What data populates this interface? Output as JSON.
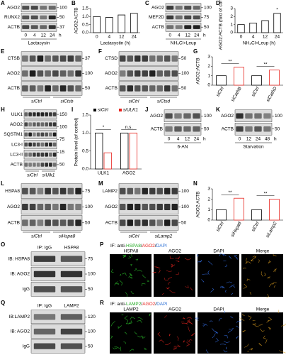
{
  "panels": [
    {
      "kind": "blot",
      "letter": "A",
      "rows": [
        "AGO2",
        "RUNX2",
        "ACTB"
      ],
      "markers": [
        "100",
        "50",
        "37"
      ],
      "lanes": [
        "0",
        "4",
        "12",
        "24"
      ],
      "unit": "h",
      "treatment": "Lactacysin"
    },
    {
      "kind": "chart",
      "letter": "B",
      "ylabel": "AGO2:ACTB",
      "xlabel": "Lactacystin (h)",
      "categories": [
        "0",
        "4",
        "12",
        "24"
      ],
      "values": [
        1.0,
        0.95,
        1.1,
        1.2
      ],
      "color": "#000000",
      "ylim": [
        0,
        1.5
      ],
      "yticks": [
        {
          "value": 0,
          "label": "0.0"
        },
        {
          "value": 0.5,
          "label": "0.5"
        },
        {
          "value": 1,
          "label": "1.0"
        },
        {
          "value": 1.5,
          "label": "1.5"
        }
      ]
    },
    {
      "kind": "blot",
      "letter": "C",
      "rows": [
        "AGO2",
        "MEF2D",
        "ACTB"
      ],
      "markers": [
        "100",
        "75",
        "50"
      ],
      "lanes": [
        "0",
        "4",
        "12",
        "24"
      ],
      "unit": "h",
      "treatment": "NH₄Cl+Leup"
    },
    {
      "kind": "chart",
      "letter": "D",
      "ylabel": "AGO2:ACTB (fold of control)",
      "xlabel": "NH₄Cl+Leup (h)",
      "categories": [
        "0",
        "4",
        "12",
        "24"
      ],
      "values": [
        1.0,
        1.2,
        1.5,
        2.4
      ],
      "color": "#000000",
      "ylim": [
        0,
        3
      ],
      "yticks": [
        0,
        1,
        2,
        3
      ],
      "annotations": [
        "*"
      ]
    },
    {
      "kind": "blot",
      "letter": "E",
      "rows": [
        "CTSB",
        "AGO2",
        "ACTB"
      ],
      "markers": [
        "37",
        "100",
        "50"
      ],
      "groups": [
        "siCtrl",
        "siCtsb"
      ]
    },
    {
      "kind": "blot",
      "letter": "F",
      "rows": [
        "CTSD",
        "AGO2",
        "ACTB"
      ],
      "markers": [
        "50",
        "100",
        "50"
      ],
      "groups": [
        "siCtrl",
        "siCtsd"
      ]
    },
    {
      "kind": "chart",
      "letter": "G",
      "ylabel": "AGO2:ACTB",
      "categories": [
        "siCtrl",
        "siCathB",
        "siCtrl",
        "siCathD"
      ],
      "values": [
        1.0,
        1.9,
        1.0,
        1.6
      ],
      "colors": [
        "#000000",
        "#e8251f",
        "#000000",
        "#e8251f"
      ],
      "ylim": [
        0,
        3
      ],
      "yticks": [
        0,
        1,
        2,
        3
      ],
      "annotations": [
        "**",
        "**"
      ]
    },
    {
      "kind": "blot",
      "letter": "H",
      "rows": [
        "ULK1",
        "AGO2",
        "SQSTM1",
        "LC3-I",
        "LC3-II",
        "ACTB"
      ],
      "markers": [
        "150",
        "100",
        "75",
        "15",
        "50"
      ],
      "groups": [
        "siCtrl",
        "siUlk1"
      ]
    },
    {
      "kind": "chart",
      "letter": "I",
      "ylabel": "Protein level (of control)",
      "categories": [
        "ULK1",
        "AGO2"
      ],
      "series": [
        {
          "name": "siCtrl",
          "color": "#000000",
          "values": [
            1.0,
            1.0
          ]
        },
        {
          "name": "siULK1",
          "color": "#e8251f",
          "values": [
            0.45,
            1.0
          ]
        }
      ],
      "ylim": [
        0,
        1.5
      ],
      "yticks": [
        {
          "value": 0,
          "label": "0.0"
        },
        {
          "value": 0.5,
          "label": "0.5"
        },
        {
          "value": 1,
          "label": "1.0"
        },
        {
          "value": 1.5,
          "label": "1.5"
        }
      ],
      "annotations": [
        "*",
        "n.s."
      ]
    },
    {
      "kind": "blot",
      "letter": "J",
      "rows": [
        "AGO2",
        "ACTB"
      ],
      "markers": [
        "100",
        "50"
      ],
      "lanes": [
        "0",
        "4",
        "12",
        "24"
      ],
      "unit": "h",
      "treatment": "6-AN"
    },
    {
      "kind": "blot",
      "letter": "K",
      "rows": [
        "AGO2",
        "ACTB"
      ],
      "markers": [
        "100",
        "50"
      ],
      "lanes": [
        "0",
        "12",
        "24",
        "48"
      ],
      "unit": "h",
      "treatment": "Starvation"
    },
    {
      "kind": "blot",
      "letter": "L",
      "rows": [
        "HSPA8",
        "AGO2",
        "ACTB"
      ],
      "markers": [
        "75",
        "100",
        "50"
      ],
      "groups": [
        "siCtrl",
        "siHspa8"
      ]
    },
    {
      "kind": "blot",
      "letter": "M",
      "rows": [
        "LAMP2",
        "AGO2",
        "ACTB"
      ],
      "markers": [
        "100",
        "100",
        "50"
      ],
      "groups": [
        "siCtrl",
        "siLamp2"
      ]
    },
    {
      "kind": "chart",
      "letter": "N",
      "ylabel": "AGO2:ACTB",
      "categories": [
        "siCtrl",
        "siHspa8",
        "siCtrl",
        "siLamp2"
      ],
      "values": [
        1.0,
        2.1,
        1.0,
        2.0
      ],
      "colors": [
        "#000000",
        "#e8251f",
        "#000000",
        "#e8251f"
      ],
      "ylim": [
        0,
        3
      ],
      "yticks": [
        0,
        1,
        2,
        3
      ],
      "annotations": [
        "**",
        "**"
      ]
    },
    {
      "kind": "blot",
      "letter": "O",
      "header": [
        "IP: IgG",
        "HSPA8"
      ],
      "rows": [
        "IB: HSPA8",
        "IB: AGO2",
        "IgG"
      ],
      "markers": [
        "75",
        "100",
        "50"
      ]
    },
    {
      "kind": "if",
      "letter": "P",
      "title": [
        {
          "text": "IF: anti-",
          "color": "#000000"
        },
        {
          "text": "HSPA8",
          "color": "#1faa1f"
        },
        {
          "text": "/",
          "color": "#000000"
        },
        {
          "text": "AGO2",
          "color": "#e8251f"
        },
        {
          "text": "/",
          "color": "#000000"
        },
        {
          "text": "DAPI",
          "color": "#2a6fd6"
        }
      ],
      "channels": [
        {
          "name": "HSPA8",
          "color": "#2fd62f"
        },
        {
          "name": "AGO2",
          "color": "#e8251f"
        },
        {
          "name": "DAPI",
          "color": "#3a7bff"
        },
        {
          "name": "Merge",
          "color": "#e0a020"
        }
      ]
    },
    {
      "kind": "blot",
      "letter": "Q",
      "header": [
        "IP: IgG",
        "LAMP2"
      ],
      "rows": [
        "IB:LAMP2",
        "IB: AGO2",
        "IgG"
      ],
      "markers": [
        "120",
        "100",
        "50"
      ]
    },
    {
      "kind": "if",
      "letter": "R",
      "title": [
        {
          "text": "IF: anti-",
          "color": "#000000"
        },
        {
          "text": "LAMP2",
          "color": "#1faa1f"
        },
        {
          "text": "/",
          "color": "#000000"
        },
        {
          "text": "AGO2",
          "color": "#e8251f"
        },
        {
          "text": "/",
          "color": "#000000"
        },
        {
          "text": "DAPI",
          "color": "#2a6fd6"
        }
      ],
      "channels": [
        {
          "name": "LAMP2",
          "color": "#2fd62f"
        },
        {
          "name": "AGO2",
          "color": "#e8251f"
        },
        {
          "name": "DAPI",
          "color": "#3a7bff"
        },
        {
          "name": "Merge",
          "color": "#e0a020"
        }
      ]
    }
  ]
}
